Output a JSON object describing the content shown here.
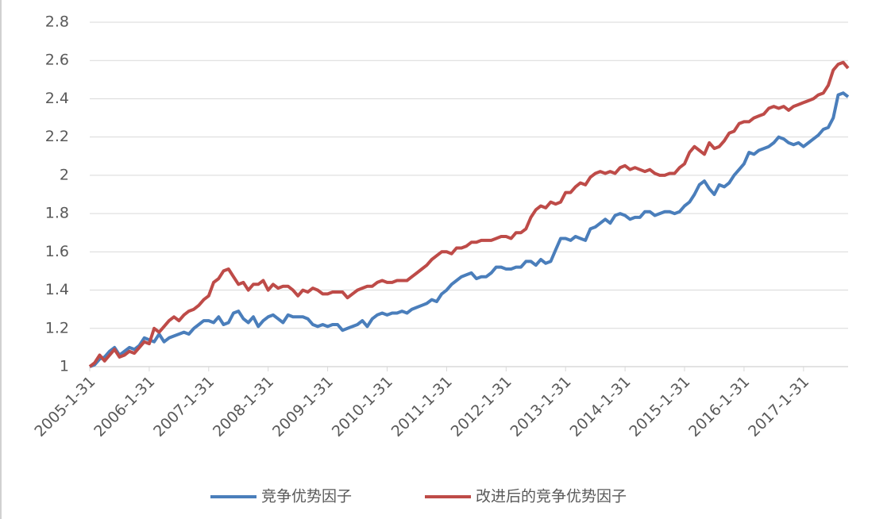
{
  "chart_data": {
    "type": "line",
    "categories": [
      "2005-1-31",
      null,
      null,
      null,
      null,
      null,
      null,
      null,
      null,
      null,
      null,
      null,
      "2006-1-31",
      null,
      null,
      null,
      null,
      null,
      null,
      null,
      null,
      null,
      null,
      null,
      "2007-1-31",
      null,
      null,
      null,
      null,
      null,
      null,
      null,
      null,
      null,
      null,
      null,
      "2008-1-31",
      null,
      null,
      null,
      null,
      null,
      null,
      null,
      null,
      null,
      null,
      null,
      "2009-1-31",
      null,
      null,
      null,
      null,
      null,
      null,
      null,
      null,
      null,
      null,
      null,
      "2010-1-31",
      null,
      null,
      null,
      null,
      null,
      null,
      null,
      null,
      null,
      null,
      null,
      "2011-1-31",
      null,
      null,
      null,
      null,
      null,
      null,
      null,
      null,
      null,
      null,
      null,
      "2012-1-31",
      null,
      null,
      null,
      null,
      null,
      null,
      null,
      null,
      null,
      null,
      null,
      "2013-1-31",
      null,
      null,
      null,
      null,
      null,
      null,
      null,
      null,
      null,
      null,
      null,
      "2014-1-31",
      null,
      null,
      null,
      null,
      null,
      null,
      null,
      null,
      null,
      null,
      null,
      "2015-1-31",
      null,
      null,
      null,
      null,
      null,
      null,
      null,
      null,
      null,
      null,
      null,
      "2016-1-31",
      null,
      null,
      null,
      null,
      null,
      null,
      null,
      null,
      null,
      null,
      null,
      "2017-1-31",
      null,
      null,
      null,
      null,
      null,
      null,
      null,
      null,
      null
    ],
    "series": [
      {
        "name": "竞争优势因子",
        "color": "#4a7ebb",
        "values": [
          1.0,
          1.01,
          1.04,
          1.05,
          1.08,
          1.1,
          1.06,
          1.08,
          1.1,
          1.09,
          1.11,
          1.15,
          1.14,
          1.13,
          1.17,
          1.13,
          1.15,
          1.16,
          1.17,
          1.18,
          1.17,
          1.2,
          1.22,
          1.24,
          1.24,
          1.23,
          1.26,
          1.22,
          1.23,
          1.28,
          1.29,
          1.25,
          1.23,
          1.26,
          1.21,
          1.24,
          1.26,
          1.27,
          1.25,
          1.23,
          1.27,
          1.26,
          1.26,
          1.26,
          1.25,
          1.22,
          1.21,
          1.22,
          1.21,
          1.22,
          1.22,
          1.19,
          1.2,
          1.21,
          1.22,
          1.24,
          1.21,
          1.25,
          1.27,
          1.28,
          1.27,
          1.28,
          1.28,
          1.29,
          1.28,
          1.3,
          1.31,
          1.32,
          1.33,
          1.35,
          1.34,
          1.38,
          1.4,
          1.43,
          1.45,
          1.47,
          1.48,
          1.49,
          1.46,
          1.47,
          1.47,
          1.49,
          1.52,
          1.52,
          1.51,
          1.51,
          1.52,
          1.52,
          1.55,
          1.55,
          1.53,
          1.56,
          1.54,
          1.55,
          1.61,
          1.67,
          1.67,
          1.66,
          1.68,
          1.67,
          1.66,
          1.72,
          1.73,
          1.75,
          1.77,
          1.75,
          1.79,
          1.8,
          1.79,
          1.77,
          1.78,
          1.78,
          1.81,
          1.81,
          1.79,
          1.8,
          1.81,
          1.81,
          1.8,
          1.81,
          1.84,
          1.86,
          1.9,
          1.95,
          1.97,
          1.93,
          1.9,
          1.95,
          1.94,
          1.96,
          2.0,
          2.03,
          2.06,
          2.12,
          2.11,
          2.13,
          2.14,
          2.15,
          2.17,
          2.2,
          2.19,
          2.17,
          2.16,
          2.17,
          2.15,
          2.17,
          2.19,
          2.21,
          2.24,
          2.25,
          2.3,
          2.42,
          2.43,
          2.41
        ]
      },
      {
        "name": "改进后的竞争优势因子",
        "color": "#be4b48",
        "values": [
          1.0,
          1.02,
          1.06,
          1.03,
          1.06,
          1.09,
          1.05,
          1.06,
          1.08,
          1.07,
          1.1,
          1.13,
          1.12,
          1.2,
          1.18,
          1.21,
          1.24,
          1.26,
          1.24,
          1.27,
          1.29,
          1.3,
          1.32,
          1.35,
          1.37,
          1.44,
          1.46,
          1.5,
          1.51,
          1.47,
          1.43,
          1.44,
          1.4,
          1.43,
          1.43,
          1.45,
          1.4,
          1.43,
          1.41,
          1.42,
          1.42,
          1.4,
          1.37,
          1.4,
          1.39,
          1.41,
          1.4,
          1.38,
          1.38,
          1.39,
          1.39,
          1.39,
          1.36,
          1.38,
          1.4,
          1.41,
          1.42,
          1.42,
          1.44,
          1.45,
          1.44,
          1.44,
          1.45,
          1.45,
          1.45,
          1.47,
          1.49,
          1.51,
          1.53,
          1.56,
          1.58,
          1.6,
          1.6,
          1.59,
          1.62,
          1.62,
          1.63,
          1.65,
          1.65,
          1.66,
          1.66,
          1.66,
          1.67,
          1.68,
          1.68,
          1.67,
          1.7,
          1.7,
          1.72,
          1.78,
          1.82,
          1.84,
          1.83,
          1.86,
          1.85,
          1.86,
          1.91,
          1.91,
          1.94,
          1.96,
          1.95,
          1.99,
          2.01,
          2.02,
          2.01,
          2.02,
          2.01,
          2.04,
          2.05,
          2.03,
          2.04,
          2.03,
          2.02,
          2.03,
          2.01,
          2.0,
          2.0,
          2.01,
          2.01,
          2.04,
          2.06,
          2.12,
          2.15,
          2.13,
          2.11,
          2.17,
          2.14,
          2.15,
          2.18,
          2.22,
          2.23,
          2.27,
          2.28,
          2.28,
          2.3,
          2.31,
          2.32,
          2.35,
          2.36,
          2.35,
          2.36,
          2.34,
          2.36,
          2.37,
          2.38,
          2.39,
          2.4,
          2.42,
          2.43,
          2.47,
          2.55,
          2.58,
          2.59,
          2.56
        ]
      }
    ],
    "ylim": [
      1,
      2.8
    ],
    "yticks": [
      1,
      1.2,
      1.4,
      1.6,
      1.8,
      2,
      2.2,
      2.4,
      2.6,
      2.8
    ],
    "grid": true,
    "legend": "bottom"
  }
}
